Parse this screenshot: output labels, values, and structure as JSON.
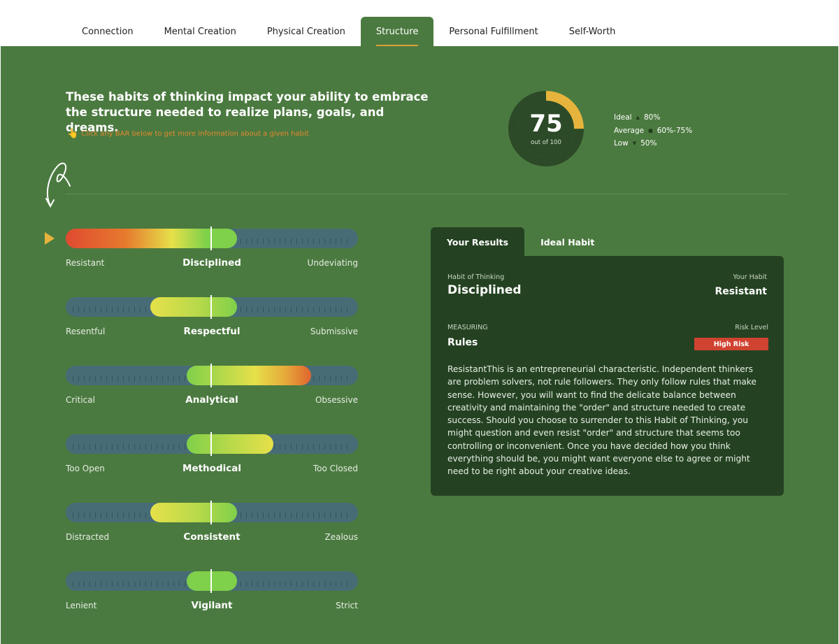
{
  "tabs": [
    {
      "label": "Connection",
      "active": false
    },
    {
      "label": "Mental Creation",
      "active": false
    },
    {
      "label": "Physical Creation",
      "active": false
    },
    {
      "label": "Structure",
      "active": true
    },
    {
      "label": "Personal Fulfillment",
      "active": false
    },
    {
      "label": "Self-Worth",
      "active": false
    }
  ],
  "intro": {
    "text": "These habits of thinking impact your ability to embrace the structure needed to realize plans, goals, and dreams.",
    "hint": "Click any BAR below to get more information about a given habit",
    "hint_icon": "cursor-click-icon"
  },
  "score": {
    "value": "75",
    "sub": "out of 100",
    "fraction": 0.25,
    "color_progress": "#e6b43d",
    "color_ring": "#2c4a27"
  },
  "legend": [
    {
      "label": "Ideal",
      "value": "80%"
    },
    {
      "label": "Average",
      "value": "60%-75%"
    },
    {
      "label": "Low",
      "value": "50%"
    }
  ],
  "habits": [
    {
      "left": "Resistant",
      "name": "Disciplined",
      "right": "Undeviating",
      "selected": true
    },
    {
      "left": "Resentful",
      "name": "Respectful",
      "right": "Submissive",
      "selected": false
    },
    {
      "left": "Critical",
      "name": "Analytical",
      "right": "Obsessive",
      "selected": false
    },
    {
      "left": "Too Open",
      "name": "Methodical",
      "right": "Too Closed",
      "selected": false
    },
    {
      "left": "Distracted",
      "name": "Consistent",
      "right": "Zealous",
      "selected": false
    },
    {
      "left": "Lenient",
      "name": "Vigilant",
      "right": "Strict",
      "selected": false
    }
  ],
  "colors": {
    "panel": "#4b7a40",
    "card": "#244222",
    "track": "#476c76",
    "red": "#df4a30",
    "orange": "#e67a2e",
    "yellow": "#e6e04a",
    "green": "#7fd04a",
    "risk": "#cf4330"
  },
  "results": {
    "tab_results": "Your Results",
    "tab_ideal": "Ideal Habit",
    "habit_label": "Habit of Thinking",
    "habit_value": "Disciplined",
    "your_habit_label": "Your Habit",
    "your_habit_value": "Resistant",
    "measuring_label": "MEASURING",
    "measuring_value": "Rules",
    "risk_label": "Risk Level",
    "risk_value": "High Risk",
    "description": "ResistantThis is an entrepreneurial characteristic. Independent thinkers are problem solvers, not rule followers. They only follow rules that make sense. However, you will want to find the delicate balance between creativity and maintaining the \"order\" and structure needed to create success. Should you choose to surrender to this Habit of Thinking, you might question and even resist \"order\" and structure that seems too controlling or inconvenient. Once you have decided how you think everything should be, you might want everyone else to agree or might need to be right about your creative ideas."
  }
}
